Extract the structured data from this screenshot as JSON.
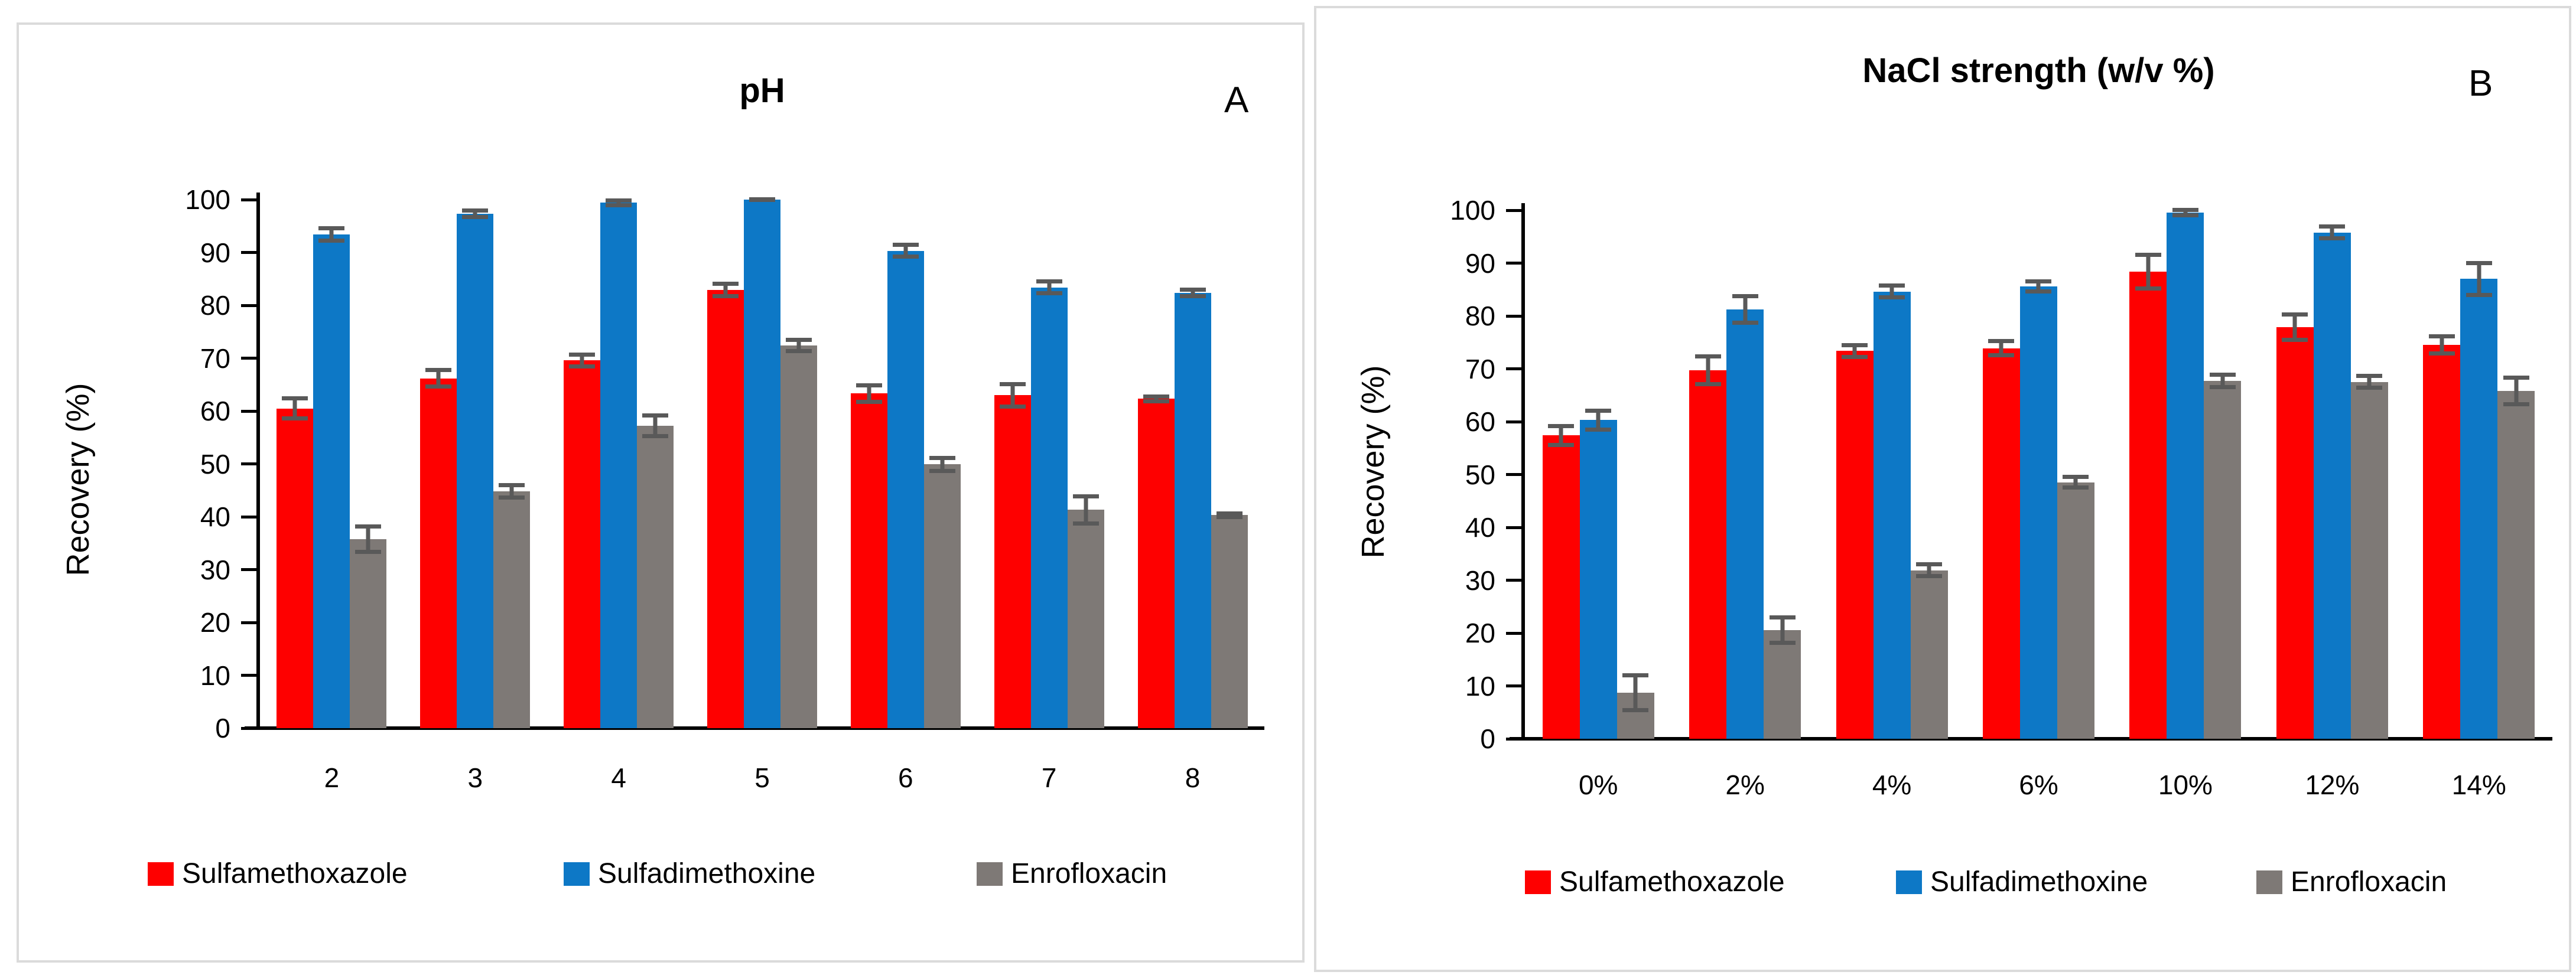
{
  "colors": {
    "sulfamethoxazole": "#FE0000",
    "sulfadimethoxine": "#0D78C6",
    "enrofloxacin": "#7E7976",
    "error_bar": "#595959",
    "axis": "#000000",
    "panel_border": "#DBDBDB"
  },
  "chart_data": [
    {
      "id": "A",
      "type": "bar",
      "panel_label": "A",
      "title": "pH",
      "ylabel": "Recovery (%)",
      "ylim": [
        0,
        100
      ],
      "ytick_step": 10,
      "ytick_labels": [
        "0",
        "10",
        "20",
        "30",
        "40",
        "50",
        "60",
        "70",
        "80",
        "90",
        "100"
      ],
      "grid": false,
      "legend_position": "bottom",
      "categories": [
        "2",
        "3",
        "4",
        "5",
        "6",
        "7",
        "8"
      ],
      "series": [
        {
          "name": "Sulfamethoxazole",
          "color": "#FE0000",
          "values": [
            60.5,
            66.2,
            69.6,
            82.9,
            63.3,
            63.0,
            62.3
          ],
          "errors": [
            2.3,
            2.0,
            1.5,
            1.6,
            2.0,
            2.5,
            0.8
          ]
        },
        {
          "name": "Sulfadimethoxine",
          "color": "#0D78C6",
          "values": [
            93.4,
            97.3,
            99.4,
            100.0,
            90.3,
            83.4,
            82.3
          ],
          "errors": [
            1.6,
            1.0,
            0.8,
            0.5,
            1.5,
            1.5,
            1.0
          ]
        },
        {
          "name": "Enrofloxacin",
          "color": "#7E7976",
          "values": [
            35.8,
            44.8,
            57.2,
            72.4,
            49.9,
            41.3,
            40.3
          ],
          "errors": [
            2.8,
            1.6,
            2.3,
            1.5,
            1.6,
            3.0,
            0.7
          ]
        }
      ]
    },
    {
      "id": "B",
      "type": "bar",
      "panel_label": "B",
      "title": "NaCl strength (w/v %)",
      "ylabel": "Recovery (%)",
      "ylim": [
        0,
        100
      ],
      "ytick_step": 10,
      "ytick_labels": [
        "0",
        "10",
        "20",
        "30",
        "40",
        "50",
        "60",
        "70",
        "80",
        "90",
        "100"
      ],
      "grid": false,
      "legend_position": "bottom",
      "categories": [
        "0%",
        "2%",
        "4%",
        "6%",
        "10%",
        "12%",
        "14%"
      ],
      "series": [
        {
          "name": "Sulfamethoxazole",
          "color": "#FE0000",
          "values": [
            57.4,
            69.7,
            73.4,
            73.9,
            88.4,
            77.9,
            74.5
          ],
          "errors": [
            2.2,
            3.0,
            1.5,
            1.7,
            3.6,
            2.8,
            2.0
          ]
        },
        {
          "name": "Sulfadimethoxine",
          "color": "#0D78C6",
          "values": [
            60.3,
            81.2,
            84.6,
            85.6,
            99.6,
            95.8,
            87.0
          ],
          "errors": [
            2.2,
            2.9,
            1.5,
            1.3,
            0.9,
            1.5,
            3.4
          ]
        },
        {
          "name": "Enrofloxacin",
          "color": "#7E7976",
          "values": [
            8.7,
            20.6,
            31.9,
            48.5,
            67.7,
            67.5,
            65.8
          ],
          "errors": [
            3.7,
            2.8,
            1.5,
            1.4,
            1.6,
            1.5,
            2.9
          ]
        }
      ]
    }
  ]
}
